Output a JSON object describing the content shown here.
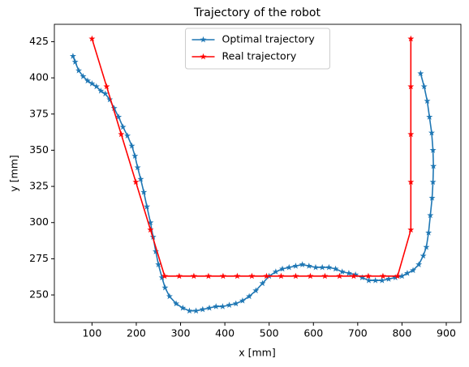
{
  "chart_data": {
    "type": "line",
    "title": "Trajectory of the robot",
    "xlabel": "x [mm]",
    "ylabel": "y [mm]",
    "xlim": [
      15,
      933
    ],
    "ylim": [
      231,
      437
    ],
    "xticks": [
      100,
      200,
      300,
      400,
      500,
      600,
      700,
      800,
      900
    ],
    "yticks": [
      250,
      275,
      300,
      325,
      350,
      375,
      400,
      425
    ],
    "legend": "upper center",
    "series": [
      {
        "name": "Optimal trajectory",
        "color": "#1f77b4",
        "x": [
          57,
          62,
          70,
          80,
          90,
          100,
          110,
          120,
          130,
          140,
          150,
          160,
          170,
          180,
          190,
          197,
          203,
          210,
          217,
          224,
          232,
          238,
          244,
          250,
          258,
          265,
          275,
          290,
          305,
          320,
          335,
          350,
          365,
          380,
          395,
          410,
          425,
          440,
          455,
          470,
          485,
          500,
          515,
          530,
          545,
          560,
          575,
          590,
          605,
          620,
          635,
          650,
          665,
          680,
          695,
          710,
          725,
          740,
          755,
          770,
          785,
          800,
          812,
          825,
          838,
          848,
          855,
          860,
          864,
          868,
          870,
          871,
          870,
          867,
          862,
          857,
          850,
          842
        ],
        "values": [
          415,
          411,
          405,
          401,
          398,
          396,
          394,
          391,
          389,
          385,
          379,
          373,
          366,
          360,
          353,
          346,
          338,
          330,
          321,
          311,
          300,
          290,
          280,
          271,
          262,
          255,
          249,
          244,
          241,
          239,
          239,
          240,
          241,
          242,
          242,
          243,
          244,
          246,
          249,
          253,
          258,
          263,
          266,
          268,
          269,
          270,
          271,
          270,
          269,
          269,
          269,
          268,
          266,
          265,
          264,
          262,
          260,
          260,
          260,
          261,
          262,
          263,
          265,
          267,
          271,
          277,
          283,
          293,
          305,
          317,
          328,
          339,
          350,
          362,
          373,
          384,
          394,
          403
        ]
      },
      {
        "name": "Real trajectory",
        "color": "#ff0000",
        "x": [
          100,
          133,
          166,
          199,
          232,
          264,
          297,
          330,
          363,
          396,
          428,
          461,
          494,
          527,
          560,
          593,
          626,
          659,
          691,
          724,
          757,
          790,
          820,
          820,
          820,
          820,
          820
        ],
        "values": [
          427,
          394,
          361,
          328,
          295,
          263,
          263,
          263,
          263,
          263,
          263,
          263,
          263,
          263,
          263,
          263,
          263,
          263,
          263,
          263,
          263,
          263,
          295,
          328,
          361,
          394,
          427
        ]
      }
    ]
  }
}
